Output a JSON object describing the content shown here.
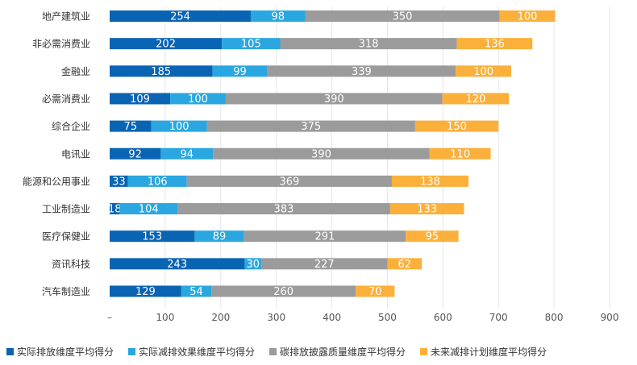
{
  "chart_data": {
    "type": "bar",
    "orientation": "horizontal",
    "stacked": true,
    "categories": [
      "地产建筑业",
      "非必需消费业",
      "金融业",
      "必需消费业",
      "综合企业",
      "电讯业",
      "能源和公用事业",
      "工业制造业",
      "医疗保健业",
      "资讯科技",
      "汽车制造业"
    ],
    "series": [
      {
        "name": "实际排放维度平均得分",
        "color": "#0a64b4",
        "values": [
          254,
          202,
          185,
          109,
          75,
          92,
          33,
          18,
          153,
          243,
          129
        ]
      },
      {
        "name": "实际减排效果维度平均得分",
        "color": "#2aa7e0",
        "values": [
          98,
          105,
          99,
          100,
          100,
          94,
          106,
          104,
          89,
          30,
          54
        ]
      },
      {
        "name": "碳排放披露质量维度平均得分",
        "color": "#9b9b9b",
        "values": [
          350,
          318,
          339,
          390,
          375,
          390,
          369,
          383,
          291,
          227,
          260
        ]
      },
      {
        "name": "未来减排计划维度平均得分",
        "color": "#fbb03b",
        "values": [
          100,
          136,
          100,
          120,
          150,
          110,
          138,
          133,
          95,
          62,
          70
        ]
      }
    ],
    "x_ticks": [
      "–",
      "100",
      "200",
      "300",
      "400",
      "500",
      "600",
      "700",
      "800",
      "900"
    ],
    "xlim": [
      0,
      900
    ],
    "grid": "vertical",
    "legend_position": "bottom"
  }
}
